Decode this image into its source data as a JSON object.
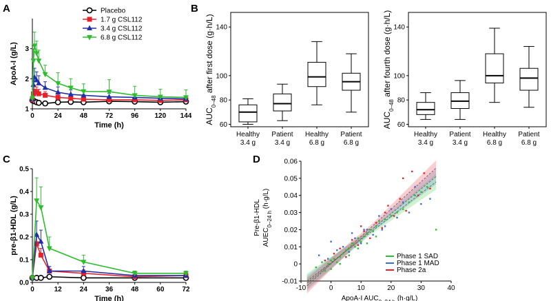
{
  "panel_letters": {
    "a": "A",
    "b": "B",
    "c": "C",
    "d": "D"
  },
  "chart_data": [
    {
      "id": "A",
      "type": "line",
      "xlabel": "Time (h)",
      "ylabel": "ApoA-I (g/L)",
      "xlim": [
        0,
        144
      ],
      "ylim": [
        1,
        4
      ],
      "xticks": [
        "0",
        "24",
        "48",
        "72",
        "96",
        "120",
        "144"
      ],
      "yticks": [
        "1",
        "2",
        "3"
      ],
      "series": [
        {
          "name": "Placebo",
          "color": "#000000",
          "marker": "circle",
          "x": [
            0,
            1,
            2,
            4,
            6,
            12,
            24,
            36,
            48,
            72,
            96,
            120,
            144
          ],
          "y": [
            1.28,
            1.27,
            1.25,
            1.22,
            1.2,
            1.18,
            1.22,
            1.23,
            1.22,
            1.25,
            1.24,
            1.22,
            1.24
          ],
          "err": [
            0.05,
            0.05,
            0.05,
            0.05,
            0.05,
            0.05,
            0.05,
            0.05,
            0.05,
            0.05,
            0.05,
            0.05,
            0.05
          ]
        },
        {
          "name": "1.7 g CSL112",
          "color": "#e8202a",
          "marker": "square",
          "x": [
            0,
            1,
            2,
            4,
            6,
            12,
            24,
            36,
            48,
            72,
            96,
            120,
            144
          ],
          "y": [
            1.3,
            1.5,
            1.58,
            1.55,
            1.5,
            1.45,
            1.38,
            1.35,
            1.32,
            1.3,
            1.3,
            1.28,
            1.3
          ],
          "err": [
            0.06,
            0.15,
            0.2,
            0.18,
            0.15,
            0.12,
            0.1,
            0.1,
            0.1,
            0.08,
            0.08,
            0.08,
            0.08
          ]
        },
        {
          "name": "3.4 g CSL112",
          "color": "#1f2fa8",
          "marker": "triangle-up",
          "x": [
            0,
            1,
            2,
            4,
            6,
            12,
            24,
            36,
            48,
            72,
            96,
            120,
            144
          ],
          "y": [
            1.32,
            1.8,
            2.05,
            1.95,
            1.85,
            1.7,
            1.55,
            1.48,
            1.45,
            1.4,
            1.38,
            1.35,
            1.33
          ],
          "err": [
            0.06,
            0.25,
            0.3,
            0.28,
            0.25,
            0.2,
            0.18,
            0.15,
            0.15,
            0.12,
            0.12,
            0.1,
            0.1
          ]
        },
        {
          "name": "6.8 g CSL112",
          "color": "#2ebd2e",
          "marker": "triangle-down",
          "x": [
            0,
            1,
            2,
            4,
            6,
            12,
            24,
            36,
            48,
            72,
            96,
            120,
            144
          ],
          "y": [
            1.35,
            2.6,
            3.1,
            2.85,
            2.6,
            2.15,
            1.85,
            1.7,
            1.58,
            1.57,
            1.45,
            1.4,
            1.38
          ],
          "err": [
            0.08,
            0.4,
            0.45,
            0.4,
            0.35,
            0.3,
            0.35,
            0.3,
            0.25,
            0.4,
            0.3,
            0.25,
            0.25
          ]
        }
      ]
    },
    {
      "id": "B1",
      "type": "box",
      "ylabel_pre": "AUC",
      "ylabel_sub": "0–48",
      "ylabel_post": " after first dose (g·h/L)",
      "ylim": [
        58,
        152
      ],
      "yticks": [
        "60",
        "80",
        "100",
        "140"
      ],
      "categories": [
        [
          "Healthy",
          "3.4 g"
        ],
        [
          "Patient",
          "3.4 g"
        ],
        [
          "Healthy",
          "6.8 g"
        ],
        [
          "Patient",
          "6.8 g"
        ]
      ],
      "boxes": [
        {
          "min": 60,
          "q1": 62,
          "median": 70,
          "q3": 76,
          "max": 81
        },
        {
          "min": 63,
          "q1": 71,
          "median": 77,
          "q3": 85,
          "max": 93
        },
        {
          "min": 76,
          "q1": 91,
          "median": 99,
          "q3": 111,
          "max": 128
        },
        {
          "min": 70,
          "q1": 88,
          "median": 95,
          "q3": 102,
          "max": 118
        }
      ]
    },
    {
      "id": "B2",
      "type": "box",
      "ylabel_pre": "AUC",
      "ylabel_sub": "0–48",
      "ylabel_post": " after fourth dose (g·h/L)",
      "ylim": [
        58,
        152
      ],
      "yticks": [
        "60",
        "80",
        "100",
        "140"
      ],
      "categories": [
        [
          "Healthy",
          "3.4 g"
        ],
        [
          "Patient",
          "3.4 g"
        ],
        [
          "Healthy",
          "6.8 g"
        ],
        [
          "Patient",
          "6.8 g"
        ]
      ],
      "boxes": [
        {
          "min": 64,
          "q1": 68,
          "median": 72,
          "q3": 78,
          "max": 86
        },
        {
          "min": 64,
          "q1": 73,
          "median": 79,
          "q3": 86,
          "max": 96
        },
        {
          "min": 78,
          "q1": 94,
          "median": 100,
          "q3": 118,
          "max": 139
        },
        {
          "min": 74,
          "q1": 88,
          "median": 98,
          "q3": 106,
          "max": 124
        }
      ]
    },
    {
      "id": "C",
      "type": "line",
      "xlabel": "Time (h)",
      "ylabel": "pre-β1-HDL (g/L)",
      "xlim": [
        0,
        72
      ],
      "ylim": [
        0,
        0.5
      ],
      "xticks": [
        "0",
        "12",
        "24",
        "36",
        "48",
        "60",
        "72"
      ],
      "yticks": [
        "0.0",
        "0.1",
        "0.2",
        "0.3",
        "0.4",
        "0.5"
      ],
      "series": [
        {
          "name": "Placebo",
          "color": "#000000",
          "marker": "circle",
          "x": [
            0,
            2,
            4,
            8,
            24,
            48,
            72
          ],
          "y": [
            0.02,
            0.02,
            0.02,
            0.025,
            0.02,
            0.02,
            0.02
          ],
          "err": [
            0.005,
            0.005,
            0.005,
            0.005,
            0.005,
            0.005,
            0.005
          ]
        },
        {
          "name": "1.7 g CSL112",
          "color": "#e8202a",
          "marker": "square",
          "x": [
            0,
            2,
            4,
            8,
            24,
            48,
            72
          ],
          "y": [
            0.02,
            0.17,
            0.12,
            0.05,
            0.04,
            0.025,
            0.03
          ],
          "err": [
            0.005,
            0.04,
            0.03,
            0.02,
            0.015,
            0.01,
            0.01
          ]
        },
        {
          "name": "3.4 g CSL112",
          "color": "#1f2fa8",
          "marker": "triangle-up",
          "x": [
            0,
            2,
            4,
            8,
            24,
            48,
            72
          ],
          "y": [
            0.02,
            0.21,
            0.18,
            0.05,
            0.05,
            0.03,
            0.03
          ],
          "err": [
            0.005,
            0.06,
            0.05,
            0.02,
            0.02,
            0.01,
            0.01
          ]
        },
        {
          "name": "6.8 g CSL112",
          "color": "#2ebd2e",
          "marker": "triangle-down",
          "x": [
            0,
            2,
            4,
            8,
            24,
            48,
            72
          ],
          "y": [
            0.02,
            0.36,
            0.33,
            0.15,
            0.09,
            0.04,
            0.04
          ],
          "err": [
            0.005,
            0.1,
            0.09,
            0.05,
            0.03,
            0.01,
            0.01
          ]
        }
      ]
    },
    {
      "id": "D",
      "type": "scatter",
      "ylabel1": "Pre-β1-HDL",
      "ylabel2_pre": "AUEC",
      "ylabel2_sub": "0–24 h",
      "ylabel2_post": " (h·g/L)",
      "xlabel_pre": "ApoA-I AUC",
      "xlabel_sub": "0–24 h",
      "xlabel_post": " (h·g/L)",
      "xlim": [
        -10,
        40
      ],
      "ylim": [
        -0.01,
        0.06
      ],
      "xticks": [
        "-10",
        "0",
        "10",
        "20",
        "30",
        "40"
      ],
      "yticks": [
        "-0.01",
        "0",
        "0.01",
        "0.02",
        "0.03",
        "0.04",
        "0.05",
        "0.06"
      ],
      "legend": [
        "Phase 1 SAD",
        "Phase 1 MAD",
        "Phase 2a"
      ],
      "colors": [
        "#2ebd2e",
        "#3a6fc4",
        "#e8202a"
      ],
      "fits": [
        {
          "slope": 0.00135,
          "intercept": 0.0007,
          "x0": -8,
          "x1": 35
        },
        {
          "slope": 0.00145,
          "intercept": 0.0003,
          "x0": -8,
          "x1": 35
        },
        {
          "slope": 0.0016,
          "intercept": 0.0,
          "x0": -8,
          "x1": 35
        }
      ],
      "points": [
        [
          -5,
          -0.002,
          0
        ],
        [
          -3,
          0.001,
          0
        ],
        [
          -2,
          -0.004,
          0
        ],
        [
          -1,
          0.0,
          0
        ],
        [
          0,
          0.002,
          0
        ],
        [
          0,
          -0.003,
          0
        ],
        [
          1,
          0.003,
          0
        ],
        [
          2,
          0.001,
          0
        ],
        [
          3,
          0.004,
          0
        ],
        [
          4,
          0.006,
          0
        ],
        [
          5,
          0.008,
          0
        ],
        [
          6,
          0.009,
          0
        ],
        [
          7,
          0.012,
          0
        ],
        [
          8,
          0.01,
          0
        ],
        [
          9,
          0.015,
          0
        ],
        [
          10,
          0.013,
          0
        ],
        [
          11,
          0.016,
          0
        ],
        [
          12,
          0.018,
          0
        ],
        [
          13,
          0.02,
          0
        ],
        [
          14,
          0.019,
          0
        ],
        [
          15,
          0.022,
          0
        ],
        [
          16,
          0.025,
          0
        ],
        [
          18,
          0.026,
          0
        ],
        [
          20,
          0.028,
          0
        ],
        [
          22,
          0.03,
          0
        ],
        [
          24,
          0.032,
          0
        ],
        [
          26,
          0.036,
          0
        ],
        [
          28,
          0.04,
          0
        ],
        [
          30,
          0.042,
          0
        ],
        [
          32,
          0.045,
          0
        ],
        [
          35,
          0.02,
          0
        ],
        [
          3,
          0.0,
          0
        ],
        [
          6,
          0.005,
          0
        ],
        [
          9,
          0.009,
          0
        ],
        [
          12,
          0.012,
          0
        ],
        [
          15,
          0.016,
          0
        ],
        [
          -4,
          0.005,
          1
        ],
        [
          -1,
          0.003,
          1
        ],
        [
          0,
          0.013,
          1
        ],
        [
          2,
          0.008,
          1
        ],
        [
          4,
          0.01,
          1
        ],
        [
          6,
          0.007,
          1
        ],
        [
          8,
          0.015,
          1
        ],
        [
          10,
          0.012,
          1
        ],
        [
          12,
          0.02,
          1
        ],
        [
          14,
          0.017,
          1
        ],
        [
          16,
          0.028,
          1
        ],
        [
          18,
          0.022,
          1
        ],
        [
          20,
          0.032,
          1
        ],
        [
          22,
          0.027,
          1
        ],
        [
          24,
          0.036,
          1
        ],
        [
          26,
          0.03,
          1
        ],
        [
          28,
          0.045,
          1
        ],
        [
          30,
          0.035,
          1
        ],
        [
          33,
          0.038,
          1
        ],
        [
          7,
          0.018,
          1
        ],
        [
          11,
          0.02,
          1
        ],
        [
          17,
          0.02,
          1
        ],
        [
          -2,
          0.002,
          2
        ],
        [
          1,
          0.006,
          2
        ],
        [
          3,
          0.009,
          2
        ],
        [
          5,
          0.004,
          2
        ],
        [
          7,
          0.014,
          2
        ],
        [
          9,
          0.011,
          2
        ],
        [
          11,
          0.019,
          2
        ],
        [
          13,
          0.015,
          2
        ],
        [
          15,
          0.024,
          2
        ],
        [
          17,
          0.021,
          2
        ],
        [
          19,
          0.034,
          2
        ],
        [
          21,
          0.028,
          2
        ],
        [
          23,
          0.038,
          2
        ],
        [
          25,
          0.031,
          2
        ],
        [
          27,
          0.054,
          2
        ],
        [
          29,
          0.04,
          2
        ],
        [
          31,
          0.053,
          2
        ],
        [
          33,
          0.044,
          2
        ],
        [
          10,
          0.022,
          2
        ],
        [
          18,
          0.03,
          2
        ],
        [
          24,
          0.05,
          2
        ]
      ]
    }
  ]
}
